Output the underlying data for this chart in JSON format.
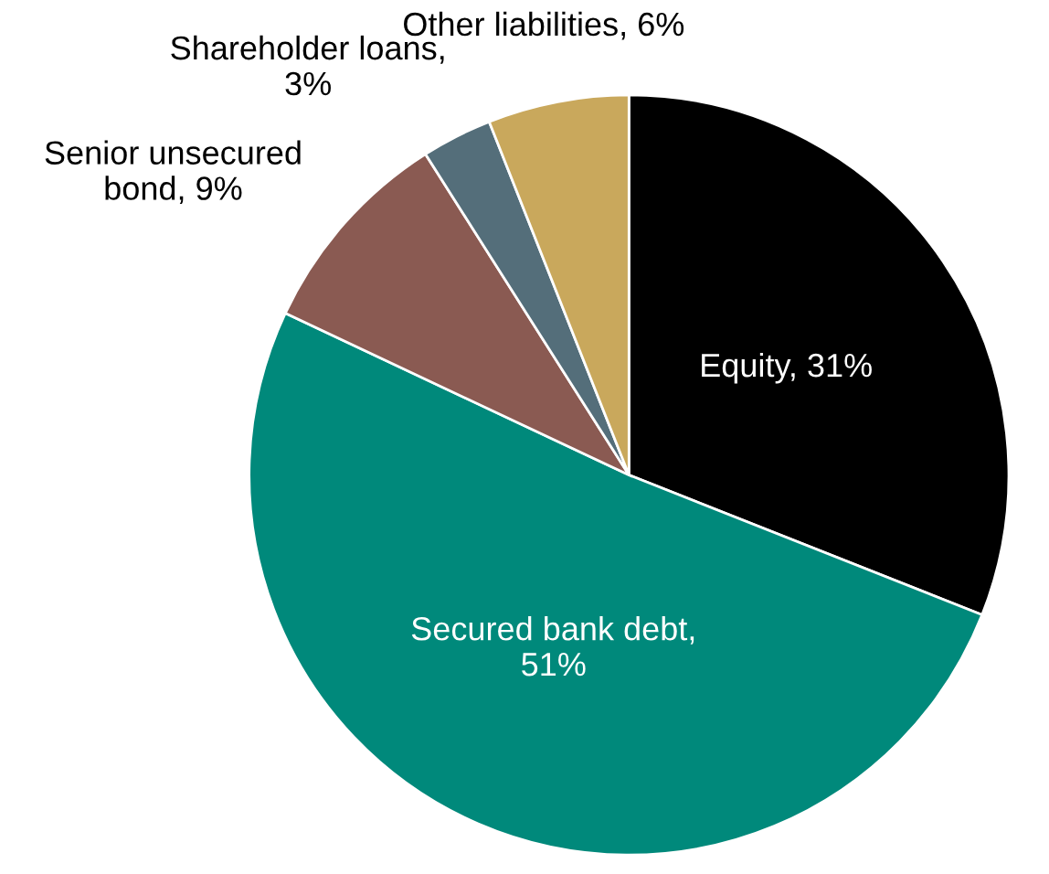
{
  "chart_data": {
    "type": "pie",
    "categories": [
      "Equity, 31%",
      "Secured bank debt,\n51%",
      "Senior unsecured\nbond, 9%",
      "Shareholder loans,\n3%",
      "Other liabilities, 6%"
    ],
    "values": [
      31,
      51,
      9,
      3,
      6
    ],
    "colors": [
      "#000000",
      "#00897b",
      "#8a5a52",
      "#546e7a",
      "#c9a85c"
    ],
    "legend": false
  }
}
